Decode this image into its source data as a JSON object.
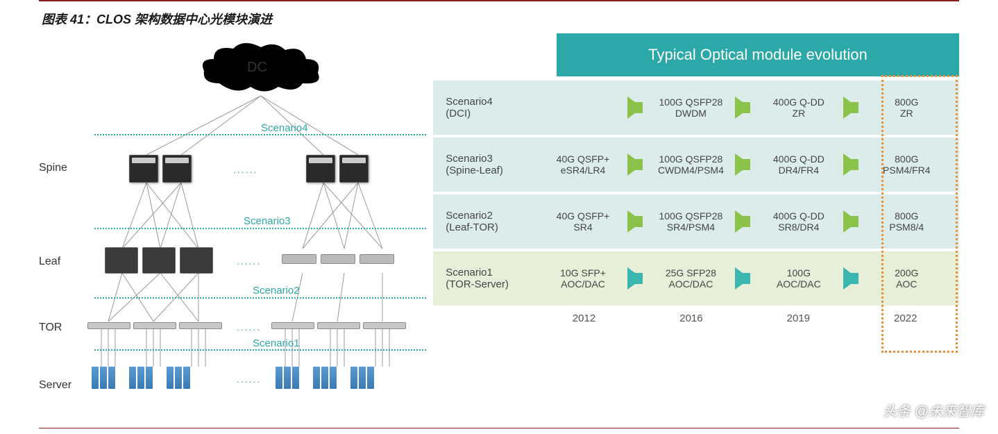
{
  "title": "图表 41：CLOS 架构数据中心光模块演进",
  "left": {
    "cloud_label": "DC",
    "layers": [
      "Spine",
      "Leaf",
      "TOR",
      "Server"
    ],
    "scenarios": [
      "Scenario4",
      "Scenario3",
      "Scenario2",
      "Scenario1"
    ],
    "scenario_color": "#2ca8a8",
    "dotted_line_color": "#2ca8a8",
    "ellipsis": "......"
  },
  "header_title": "Typical Optical module evolution",
  "header_bg": "#2ca8a8",
  "rows": [
    {
      "label_line1": "Scenario4",
      "label_line2": "(DCI)",
      "bg": "teal-bg",
      "arrow_color": "green",
      "cells": [
        {
          "line1": "",
          "line2": ""
        },
        {
          "line1": "100G QSFP28",
          "line2": "DWDM"
        },
        {
          "line1": "400G Q-DD",
          "line2": "ZR"
        },
        {
          "line1": "800G",
          "line2": "ZR"
        }
      ],
      "arrows_before": [
        1,
        2,
        3
      ]
    },
    {
      "label_line1": "Scenario3",
      "label_line2": "(Spine-Leaf)",
      "bg": "teal-bg",
      "arrow_color": "green",
      "cells": [
        {
          "line1": "40G QSFP+",
          "line2": "eSR4/LR4"
        },
        {
          "line1": "100G QSFP28",
          "line2": "CWDM4/PSM4"
        },
        {
          "line1": "400G Q-DD",
          "line2": "DR4/FR4"
        },
        {
          "line1": "800G",
          "line2": "PSM4/FR4"
        }
      ],
      "arrows_before": [
        1,
        2,
        3
      ]
    },
    {
      "label_line1": "Scenario2",
      "label_line2": "(Leaf-TOR)",
      "bg": "teal-bg",
      "arrow_color": "green",
      "cells": [
        {
          "line1": "40G QSFP+",
          "line2": "SR4"
        },
        {
          "line1": "100G QSFP28",
          "line2": "SR4/PSM4"
        },
        {
          "line1": "400G Q-DD",
          "line2": "SR8/DR4"
        },
        {
          "line1": "800G",
          "line2": "PSM8/4"
        }
      ],
      "arrows_before": [
        1,
        2,
        3
      ]
    },
    {
      "label_line1": "Scenario1",
      "label_line2": "(TOR-Server)",
      "bg": "green-bg",
      "arrow_color": "teal",
      "cells": [
        {
          "line1": "10G SFP+",
          "line2": "AOC/DAC"
        },
        {
          "line1": "25G SFP28",
          "line2": "AOC/DAC"
        },
        {
          "line1": "100G",
          "line2": "AOC/DAC"
        },
        {
          "line1": "200G",
          "line2": "AOC"
        }
      ],
      "arrows_before": [
        1,
        2,
        3
      ]
    }
  ],
  "years": [
    "2012",
    "2016",
    "2019",
    "2022"
  ],
  "future_box_color": "#e8913a",
  "watermark": "头条 @未来智库",
  "colors": {
    "title_rule": "#8b1a1a",
    "arrow_green": "#8bc34a",
    "arrow_teal": "#3ab5b0",
    "row_teal_bg": "#dbeceb",
    "row_green_bg": "#e8efd9"
  }
}
